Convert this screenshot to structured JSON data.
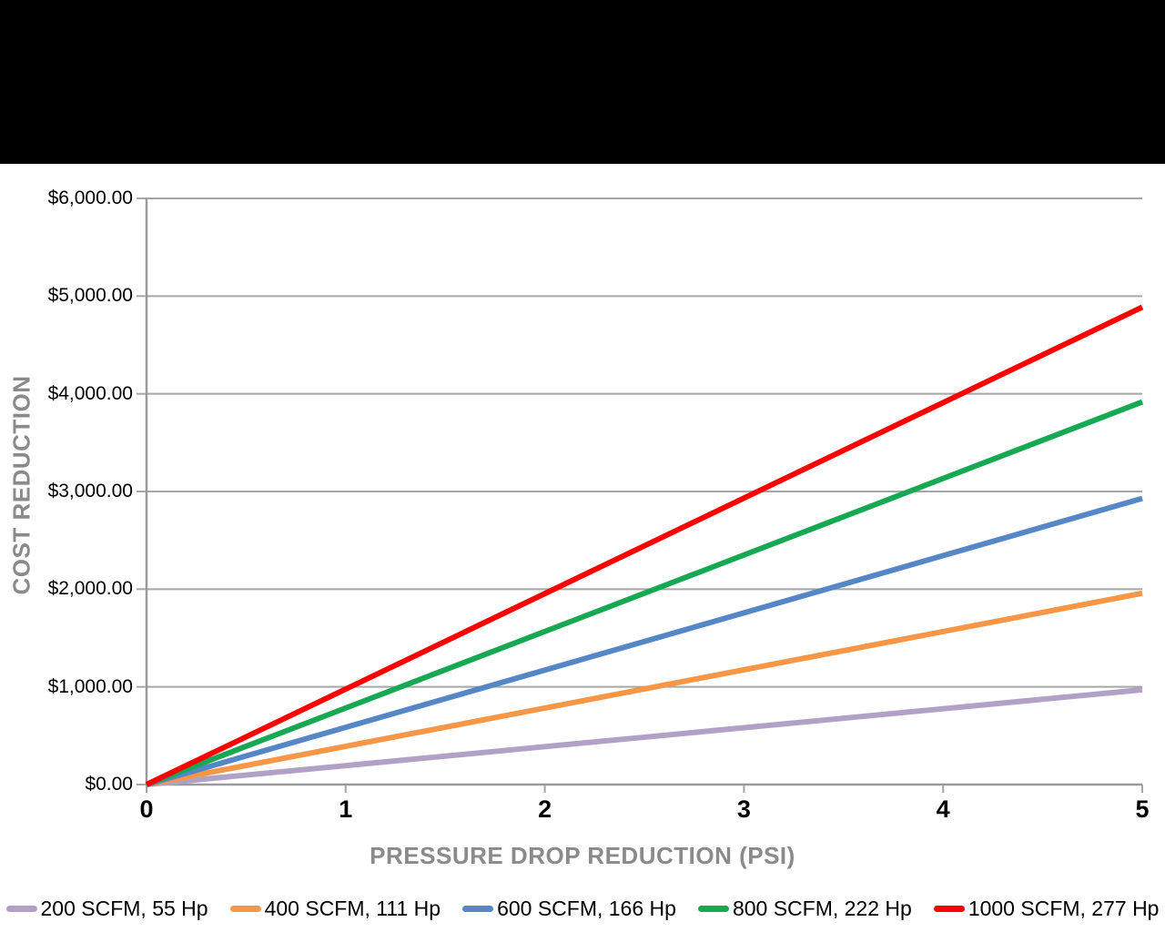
{
  "chart_data": {
    "type": "line",
    "title": "",
    "xlabel": "PRESSURE DROP REDUCTION (PSI)",
    "ylabel": "COST REDUCTION",
    "xlim": [
      0,
      5
    ],
    "ylim": [
      0,
      6000
    ],
    "grid": "horizontal",
    "legend_position": "bottom",
    "x_ticks": [
      0,
      1,
      2,
      3,
      4,
      5
    ],
    "y_ticks": [
      {
        "value": 0,
        "label": "$0.00"
      },
      {
        "value": 1000,
        "label": "$1,000.00"
      },
      {
        "value": 2000,
        "label": "$2,000.00"
      },
      {
        "value": 3000,
        "label": "$3,000.00"
      },
      {
        "value": 4000,
        "label": "$4,000.00"
      },
      {
        "value": 5000,
        "label": "$5,000.00"
      },
      {
        "value": 6000,
        "label": "$6,000.00"
      }
    ],
    "series": [
      {
        "name": "200 SCFM, 55 Hp",
        "color": "#b2a1c7",
        "x": [
          0,
          5
        ],
        "values": [
          0,
          970
        ]
      },
      {
        "name": "400 SCFM, 111 Hp",
        "color": "#f79646",
        "x": [
          0,
          5
        ],
        "values": [
          0,
          1958
        ]
      },
      {
        "name": "600 SCFM, 166 Hp",
        "color": "#5586c6",
        "x": [
          0,
          5
        ],
        "values": [
          0,
          2929
        ]
      },
      {
        "name": "800 SCFM, 222 Hp",
        "color": "#17a854",
        "x": [
          0,
          5
        ],
        "values": [
          0,
          3917
        ]
      },
      {
        "name": "1000 SCFM, 277 Hp",
        "color": "#fe0000",
        "x": [
          0,
          5
        ],
        "values": [
          0,
          4887
        ]
      }
    ],
    "colors": {
      "gridline": "#a6a6a6",
      "axis": "#9a9a9a",
      "tick": "#a6a6a6",
      "axis_title": "#8a8a8a",
      "tick_label": "#000000"
    }
  }
}
